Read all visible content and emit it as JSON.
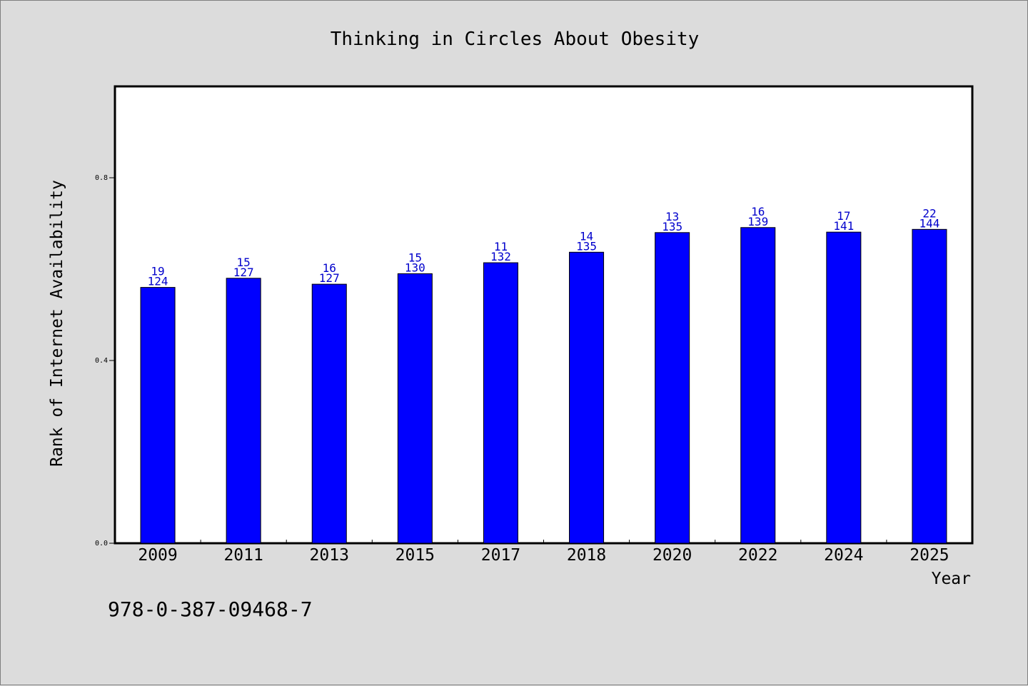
{
  "colors": {
    "background": "#dcdcdc",
    "plot_background": "#ffffff",
    "bar": "#0000ff",
    "bar_label": "#0000cc",
    "text": "#000000"
  },
  "footer": {
    "code": "978-0-387-09468-7"
  },
  "chart_data": {
    "type": "bar",
    "title": "Thinking in Circles About Obesity",
    "xlabel": "Year",
    "ylabel": "Rank of Internet Availability",
    "ylim": [
      0,
      1.0
    ],
    "yticks": [
      "0.0",
      "0.4",
      "0.8"
    ],
    "grid": false,
    "legend": "none",
    "categories": [
      "2009",
      "2011",
      "2013",
      "2015",
      "2017",
      "2018",
      "2020",
      "2022",
      "2024",
      "2025"
    ],
    "values": [
      0.56,
      0.58,
      0.567,
      0.59,
      0.614,
      0.637,
      0.68,
      0.691,
      0.681,
      0.687
    ],
    "label_bottom": [
      "124",
      "127",
      "127",
      "130",
      "132",
      "135",
      "135",
      "139",
      "141",
      "144"
    ],
    "label_top": [
      "19",
      "15",
      "16",
      "15",
      "11",
      "14",
      "13",
      "16",
      "17",
      "22"
    ]
  }
}
